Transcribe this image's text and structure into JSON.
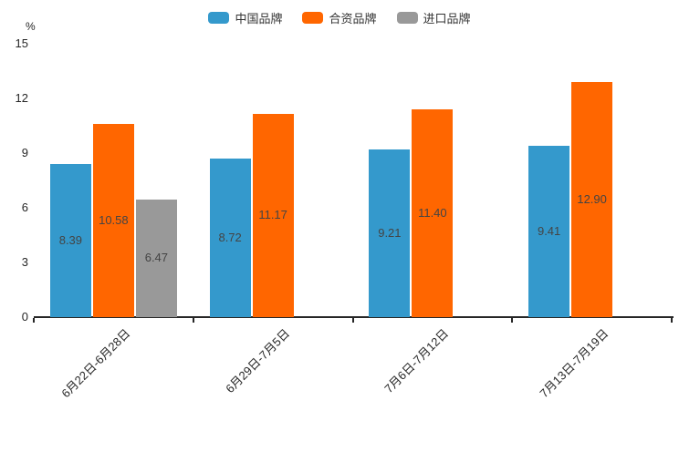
{
  "chart_data": {
    "type": "bar",
    "title": "",
    "ylabel": "%",
    "xlabel": "",
    "ylim": [
      0,
      15
    ],
    "yticks": [
      0,
      3,
      6,
      9,
      12,
      15
    ],
    "grid": false,
    "legend_position": "top",
    "categories": [
      "6月22日-6月28日",
      "6月29日-7月5日",
      "7月6日-7月12日",
      "7月13日-7月19日"
    ],
    "series": [
      {
        "name": "中国品牌",
        "color": "#3499cc",
        "values": [
          8.39,
          8.72,
          9.21,
          9.41
        ]
      },
      {
        "name": "合资品牌",
        "color": "#ff6600",
        "values": [
          10.58,
          11.17,
          11.4,
          12.9
        ]
      },
      {
        "name": "进口品牌",
        "color": "#999999",
        "values": [
          6.47,
          null,
          null,
          null
        ]
      }
    ],
    "value_label_decimals": 2
  }
}
